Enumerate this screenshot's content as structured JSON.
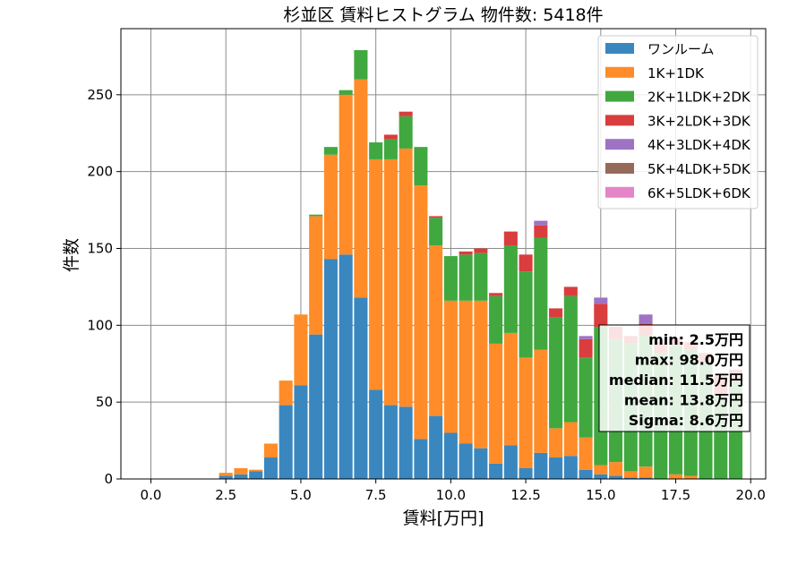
{
  "chart_data": {
    "type": "bar",
    "stacked": true,
    "title": "杉並区 賃料ヒストグラム  物件数: 5418件",
    "xlabel": "賃料[万円]",
    "ylabel": "件数",
    "xlim": [
      -1.0,
      20.5
    ],
    "ylim": [
      0,
      293
    ],
    "xticks": [
      0,
      2.5,
      5,
      7.5,
      10,
      12.5,
      15,
      17.5,
      20
    ],
    "xtick_labels": [
      "0.0",
      "2.5",
      "5.0",
      "7.5",
      "10.0",
      "12.5",
      "15.0",
      "17.5",
      "20.0"
    ],
    "yticks": [
      0,
      50,
      100,
      150,
      200,
      250
    ],
    "ytick_labels": [
      "0",
      "50",
      "100",
      "150",
      "200",
      "250"
    ],
    "grid": true,
    "legend_position": "upper right",
    "bin_width": 0.5,
    "bins": [
      2.5,
      3.0,
      3.5,
      4.0,
      4.5,
      5.0,
      5.5,
      6.0,
      6.5,
      7.0,
      7.5,
      8.0,
      8.5,
      9.0,
      9.5,
      10.0,
      10.5,
      11.0,
      11.5,
      12.0,
      12.5,
      13.0,
      13.5,
      14.0,
      14.5,
      15.0,
      15.5,
      16.0,
      16.5,
      17.0,
      17.5,
      18.0,
      18.5,
      19.0,
      19.5
    ],
    "series": [
      {
        "name": "ワンルーム",
        "color": "#3a87bf",
        "values": [
          2,
          3,
          5,
          14,
          48,
          61,
          94,
          143,
          146,
          118,
          58,
          48,
          47,
          26,
          41,
          30,
          23,
          20,
          10,
          22,
          7,
          17,
          14,
          15,
          6,
          3,
          2,
          1,
          1,
          0,
          0,
          0,
          0,
          0,
          0
        ]
      },
      {
        "name": "1K+1DK",
        "color": "#ff8c28",
        "values": [
          2,
          4,
          1,
          9,
          16,
          46,
          77,
          68,
          104,
          142,
          150,
          160,
          168,
          165,
          111,
          86,
          93,
          96,
          78,
          73,
          72,
          67,
          19,
          22,
          21,
          6,
          9,
          4,
          7,
          0,
          3,
          2,
          0,
          0,
          0
        ]
      },
      {
        "name": "2K+1LDK+2DK",
        "color": "#40a83f",
        "values": [
          0,
          0,
          0,
          0,
          0,
          0,
          1,
          5,
          3,
          19,
          11,
          13,
          21,
          25,
          18,
          29,
          30,
          31,
          31,
          57,
          56,
          73,
          72,
          82,
          52,
          90,
          80,
          83,
          85,
          82,
          84,
          82,
          76,
          55,
          63
        ]
      },
      {
        "name": "3K+2LDK+3DK",
        "color": "#d93d3d",
        "values": [
          0,
          0,
          0,
          0,
          0,
          0,
          0,
          0,
          0,
          0,
          0,
          3,
          3,
          0,
          1,
          0,
          2,
          3,
          2,
          9,
          11,
          8,
          6,
          6,
          12,
          15,
          8,
          5,
          8,
          7,
          5,
          5,
          6,
          12,
          8
        ]
      },
      {
        "name": "4K+3LDK+4DK",
        "color": "#9e73c4",
        "values": [
          0,
          0,
          0,
          0,
          0,
          0,
          0,
          0,
          0,
          0,
          0,
          0,
          0,
          0,
          0,
          0,
          0,
          0,
          0,
          0,
          0,
          3,
          0,
          0,
          2,
          4,
          0,
          0,
          6,
          0,
          0,
          0,
          0,
          0,
          0
        ]
      },
      {
        "name": "5K+4LDK+5DK",
        "color": "#966a5b",
        "values": [
          0,
          0,
          0,
          0,
          0,
          0,
          0,
          0,
          0,
          0,
          0,
          0,
          0,
          0,
          0,
          0,
          0,
          0,
          0,
          0,
          0,
          0,
          0,
          0,
          0,
          0,
          0,
          0,
          0,
          0,
          0,
          0,
          0,
          0,
          0
        ]
      },
      {
        "name": "6K+5LDK+6DK",
        "color": "#e585c8",
        "values": [
          0,
          0,
          0,
          0,
          0,
          0,
          0,
          0,
          0,
          0,
          0,
          0,
          0,
          0,
          0,
          0,
          0,
          0,
          0,
          0,
          0,
          0,
          0,
          0,
          0,
          0,
          0,
          0,
          0,
          0,
          0,
          0,
          0,
          0,
          0
        ]
      }
    ],
    "stats": [
      "min: 2.5万円",
      "max: 98.0万円",
      "median: 11.5万円",
      "mean: 13.8万円",
      "Sigma: 8.6万円"
    ]
  }
}
